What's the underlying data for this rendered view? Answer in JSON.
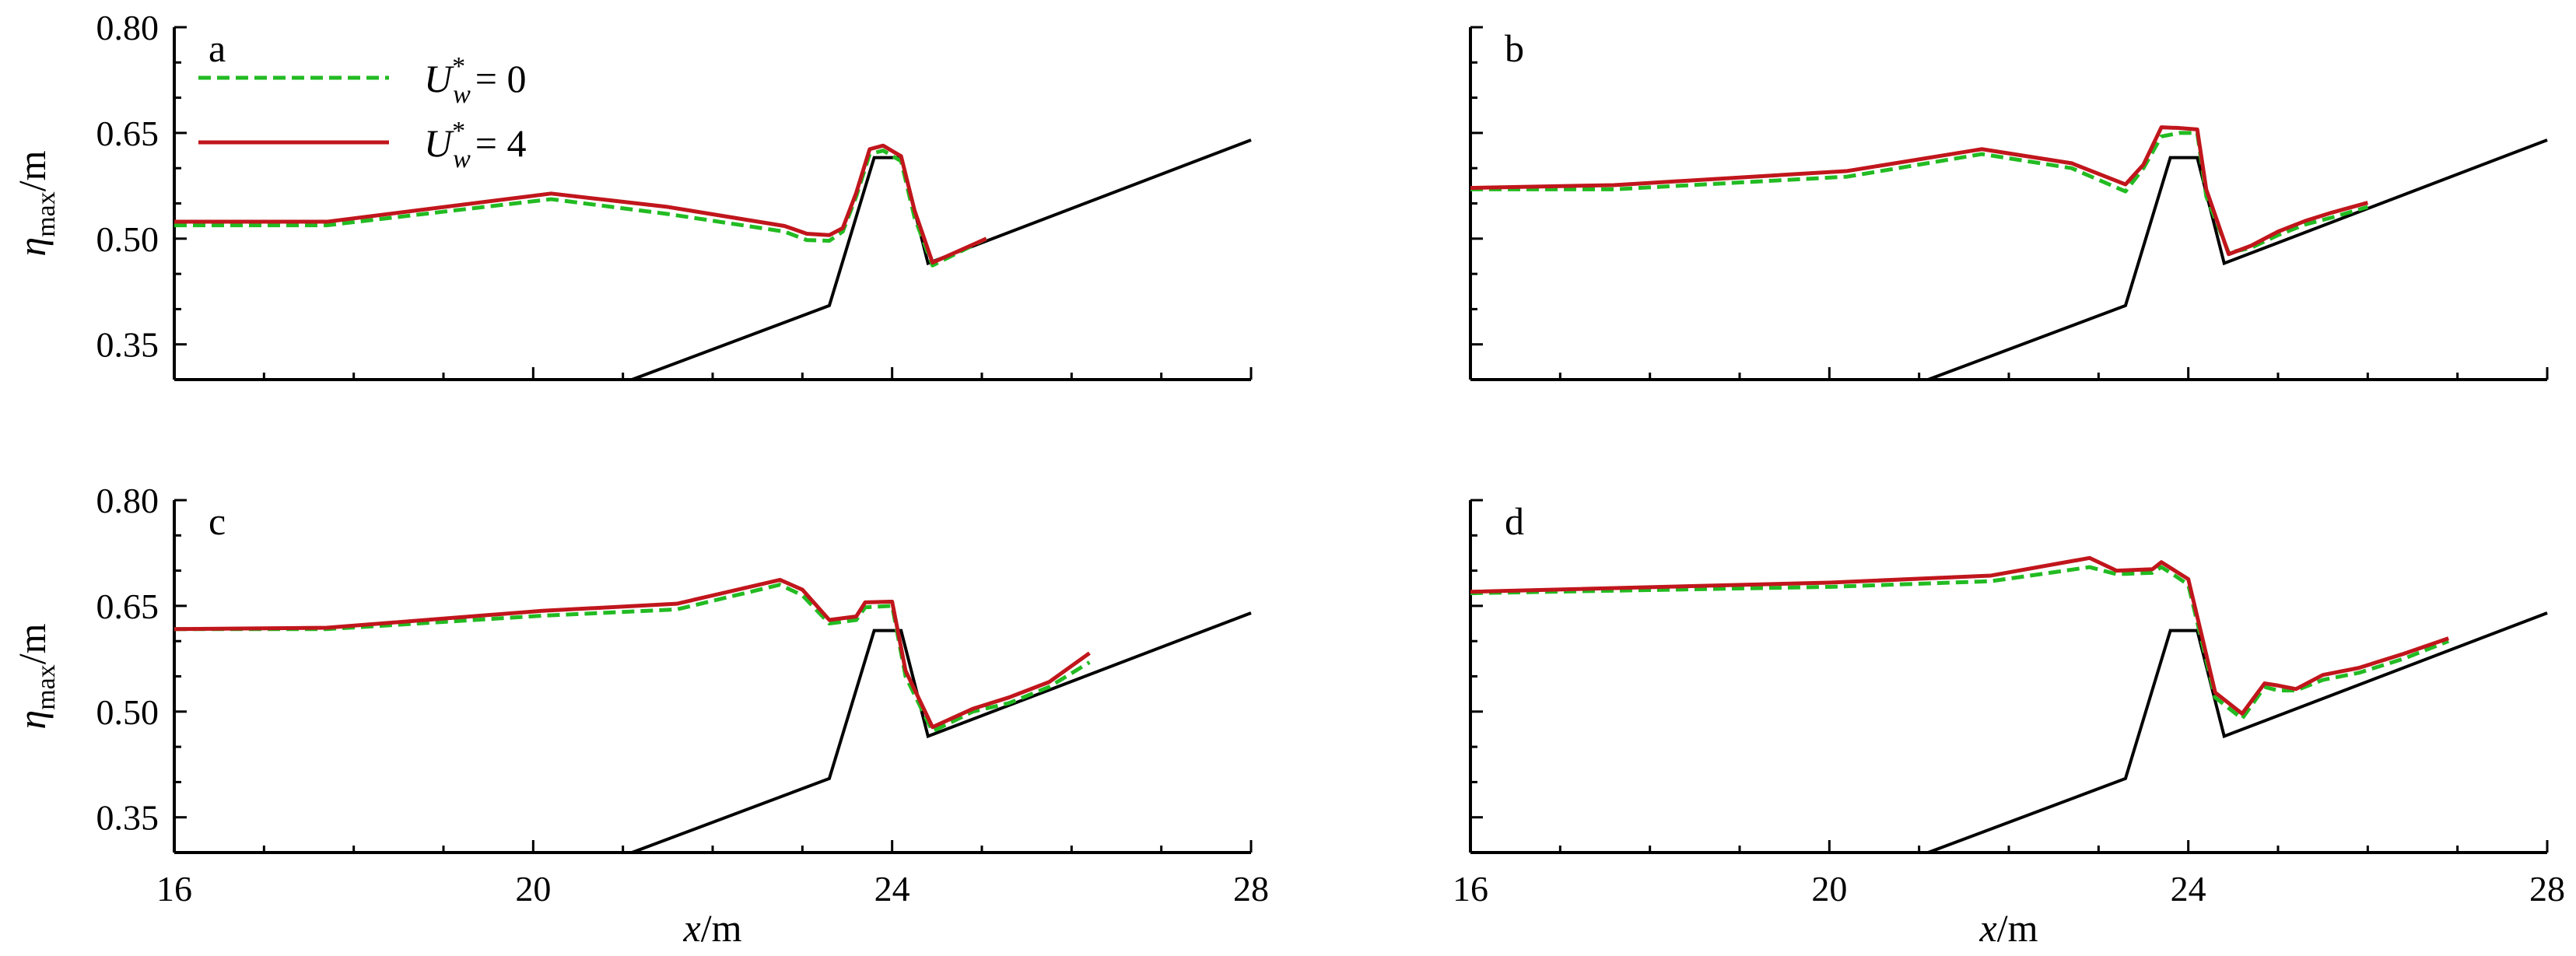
{
  "chart_data": {
    "type": "line",
    "panels": [
      "a",
      "b",
      "c",
      "d"
    ],
    "xlabel": {
      "var": "x",
      "unit": "/m"
    },
    "ylabel": {
      "var": "η",
      "sub": "max",
      "unit": "/m"
    },
    "xlim": [
      16,
      28
    ],
    "ylim": [
      0.3,
      0.8
    ],
    "xticks": [
      "16",
      "20",
      "24",
      "28"
    ],
    "yticks": [
      "0.80",
      "0.65",
      "0.50",
      "0.35"
    ],
    "legend": {
      "placement": "top-left (panel a)",
      "entries": [
        {
          "var": "U",
          "sup": "*",
          "sub": "w",
          "eq": "= 0",
          "style": "dashed",
          "color": "#22bb22"
        },
        {
          "var": "U",
          "sup": "*",
          "sub": "w",
          "eq": "= 4",
          "style": "solid",
          "color": "#c0161c"
        }
      ]
    },
    "bathymetry": {
      "color": "#000000",
      "x": [
        21.1,
        23.3,
        23.8,
        24.1,
        24.4,
        28.0
      ],
      "y": [
        0.3,
        0.405,
        0.615,
        0.615,
        0.465,
        0.64
      ]
    },
    "series": [
      {
        "panel": "a",
        "x_u0": [
          16.0,
          17.7,
          20.2,
          21.5,
          22.8,
          23.05,
          23.3,
          23.45,
          23.6,
          23.75,
          23.9,
          24.1,
          24.25,
          24.45,
          25.05
        ],
        "y_u0": [
          0.519,
          0.519,
          0.556,
          0.535,
          0.51,
          0.498,
          0.497,
          0.51,
          0.56,
          0.62,
          0.625,
          0.61,
          0.53,
          0.462,
          0.5
        ],
        "x_u4": [
          16.0,
          17.7,
          20.2,
          21.5,
          22.8,
          23.05,
          23.3,
          23.45,
          23.6,
          23.75,
          23.9,
          24.1,
          24.25,
          24.45,
          25.05
        ],
        "y_u4": [
          0.524,
          0.524,
          0.564,
          0.545,
          0.518,
          0.507,
          0.505,
          0.515,
          0.565,
          0.627,
          0.632,
          0.617,
          0.54,
          0.466,
          0.5
        ]
      },
      {
        "panel": "b",
        "x_u0": [
          16.0,
          17.6,
          20.2,
          21.7,
          22.7,
          23.3,
          23.5,
          23.7,
          23.9,
          24.1,
          24.2,
          24.45,
          24.7,
          25.0,
          25.3,
          25.6,
          26.0
        ],
        "y_u0": [
          0.57,
          0.57,
          0.588,
          0.62,
          0.6,
          0.567,
          0.6,
          0.645,
          0.65,
          0.65,
          0.56,
          0.48,
          0.487,
          0.505,
          0.52,
          0.53,
          0.545
        ],
        "x_u4": [
          16.0,
          17.6,
          20.2,
          21.7,
          22.7,
          23.3,
          23.5,
          23.7,
          23.9,
          24.1,
          24.2,
          24.45,
          24.7,
          25.0,
          25.3,
          25.6,
          26.0
        ],
        "y_u4": [
          0.572,
          0.576,
          0.596,
          0.627,
          0.607,
          0.577,
          0.605,
          0.658,
          0.657,
          0.655,
          0.57,
          0.478,
          0.49,
          0.51,
          0.525,
          0.537,
          0.551
        ]
      },
      {
        "panel": "c",
        "x_u0": [
          16.0,
          17.7,
          20.1,
          21.6,
          22.75,
          23.0,
          23.3,
          23.6,
          23.7,
          24.0,
          24.15,
          24.45,
          24.9,
          25.3,
          25.75,
          26.2
        ],
        "y_u0": [
          0.617,
          0.617,
          0.636,
          0.645,
          0.68,
          0.665,
          0.625,
          0.63,
          0.648,
          0.65,
          0.55,
          0.472,
          0.5,
          0.512,
          0.535,
          0.57
        ],
        "x_u4": [
          16.0,
          17.7,
          20.1,
          21.6,
          22.75,
          23.0,
          23.3,
          23.6,
          23.7,
          24.0,
          24.15,
          24.45,
          24.9,
          25.3,
          25.75,
          26.2
        ],
        "y_u4": [
          0.617,
          0.619,
          0.643,
          0.653,
          0.687,
          0.673,
          0.63,
          0.635,
          0.655,
          0.656,
          0.558,
          0.478,
          0.504,
          0.52,
          0.542,
          0.583
        ]
      },
      {
        "panel": "d",
        "x_u0": [
          16.0,
          20.0,
          21.8,
          22.9,
          23.2,
          23.6,
          23.7,
          23.85,
          24.0,
          24.15,
          24.3,
          24.6,
          24.85,
          25.0,
          25.2,
          25.5,
          25.9,
          26.4,
          26.9
        ],
        "y_u0": [
          0.668,
          0.677,
          0.685,
          0.705,
          0.695,
          0.697,
          0.705,
          0.693,
          0.68,
          0.6,
          0.52,
          0.49,
          0.535,
          0.53,
          0.53,
          0.545,
          0.555,
          0.575,
          0.6
        ],
        "x_u4": [
          16.0,
          20.0,
          21.8,
          22.9,
          23.2,
          23.6,
          23.7,
          23.85,
          24.0,
          24.15,
          24.3,
          24.6,
          24.85,
          25.0,
          25.2,
          25.5,
          25.9,
          26.4,
          26.9
        ],
        "y_u4": [
          0.67,
          0.683,
          0.693,
          0.718,
          0.7,
          0.702,
          0.712,
          0.7,
          0.688,
          0.608,
          0.527,
          0.497,
          0.54,
          0.537,
          0.532,
          0.552,
          0.562,
          0.582,
          0.604
        ]
      }
    ]
  },
  "colors": {
    "u0": "#22bb22",
    "u4": "#c0161c",
    "axis": "#000000"
  }
}
